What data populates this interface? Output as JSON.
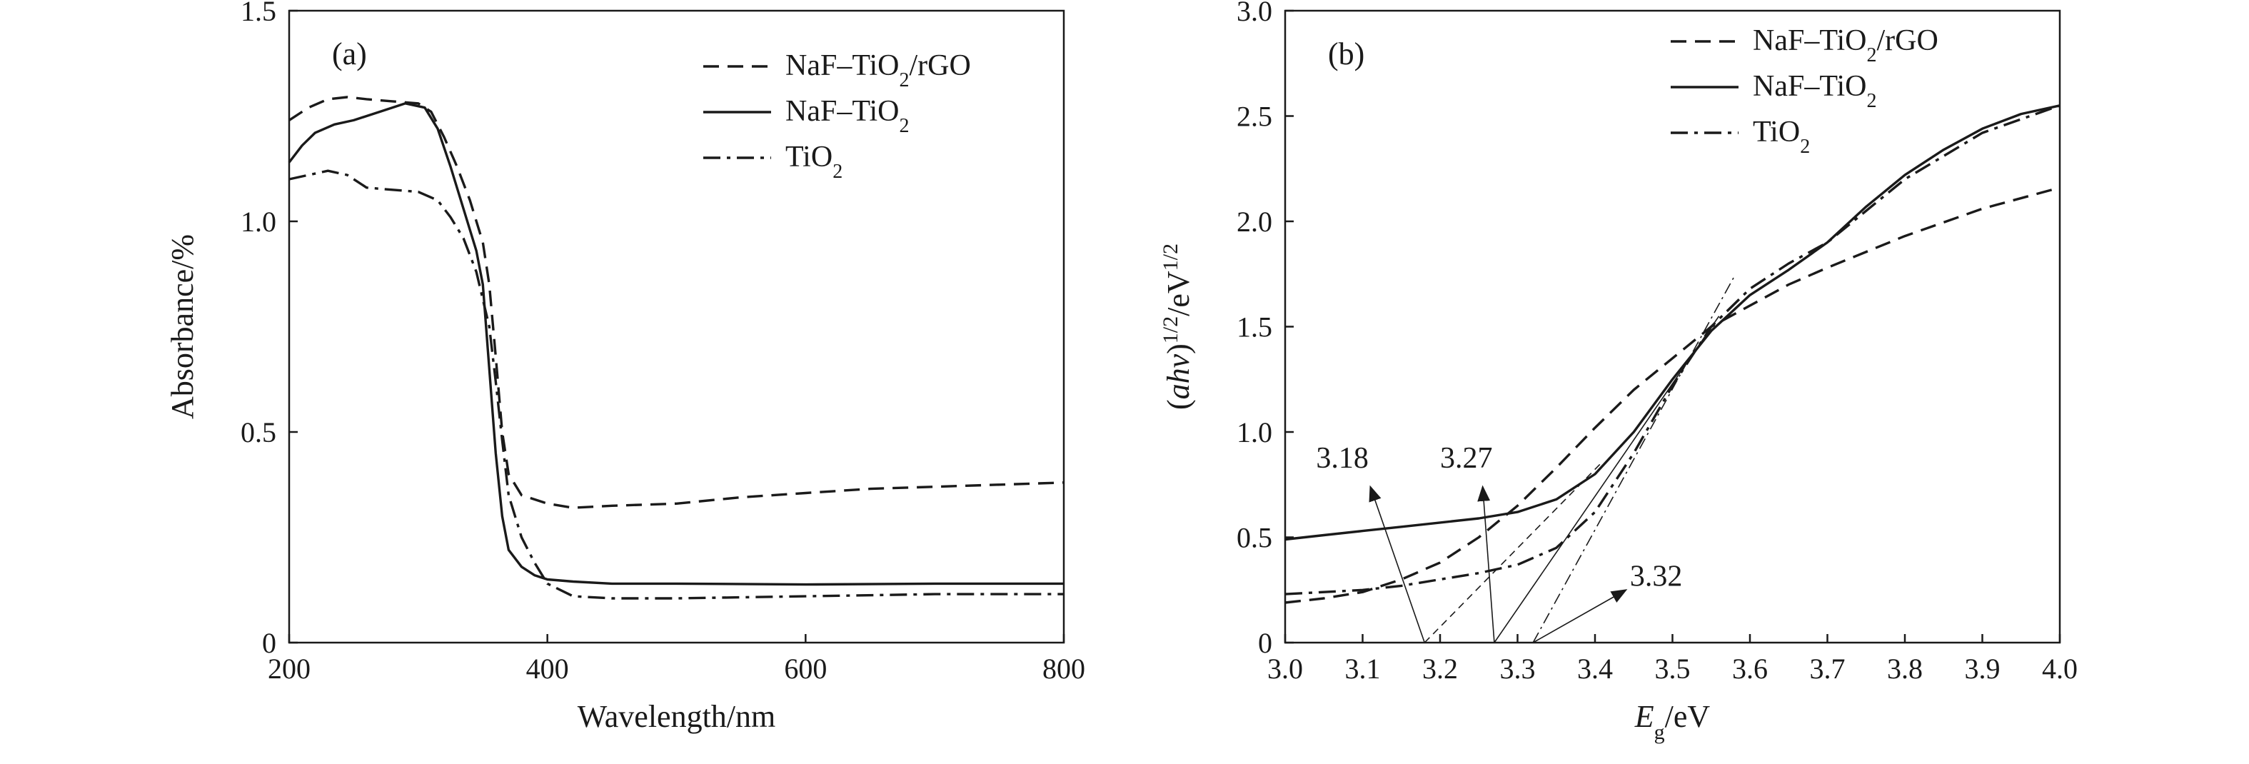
{
  "chart_data": [
    {
      "panel": "(a)",
      "type": "line",
      "xlabel": "Wavelength/nm",
      "ylabel": "Absorbance/%",
      "xlim": [
        200,
        800
      ],
      "ylim": [
        0,
        1.5
      ],
      "xticks": [
        200,
        400,
        600,
        800
      ],
      "yticks": [
        0,
        0.5,
        1.0,
        1.5
      ],
      "ytick_labels": [
        "0",
        "0.5",
        "1.0",
        "1.5"
      ],
      "grid": false,
      "legend_position": "top-right",
      "series": [
        {
          "name": "NaF–TiO2/rGO",
          "legend_label": {
            "pre": "NaF–TiO",
            "sub": "2",
            "post": "/rGO"
          },
          "style": "dashed",
          "x": [
            200,
            215,
            230,
            245,
            260,
            280,
            300,
            310,
            320,
            330,
            340,
            350,
            355,
            360,
            365,
            370,
            380,
            400,
            420,
            450,
            500,
            550,
            600,
            650,
            700,
            750,
            800
          ],
          "y": [
            1.24,
            1.27,
            1.29,
            1.295,
            1.29,
            1.285,
            1.28,
            1.26,
            1.2,
            1.13,
            1.05,
            0.95,
            0.85,
            0.68,
            0.5,
            0.4,
            0.35,
            0.33,
            0.32,
            0.325,
            0.33,
            0.345,
            0.355,
            0.365,
            0.37,
            0.375,
            0.38
          ]
        },
        {
          "name": "NaF–TiO2",
          "legend_label": {
            "pre": "NaF–TiO",
            "sub": "2",
            "post": ""
          },
          "style": "solid",
          "x": [
            200,
            210,
            220,
            235,
            250,
            270,
            290,
            305,
            315,
            325,
            335,
            345,
            350,
            355,
            360,
            365,
            370,
            380,
            390,
            400,
            420,
            450,
            500,
            600,
            700,
            800
          ],
          "y": [
            1.14,
            1.18,
            1.21,
            1.23,
            1.24,
            1.26,
            1.28,
            1.27,
            1.22,
            1.13,
            1.03,
            0.93,
            0.85,
            0.65,
            0.45,
            0.3,
            0.22,
            0.18,
            0.16,
            0.15,
            0.145,
            0.14,
            0.14,
            0.138,
            0.14,
            0.14
          ]
        },
        {
          "name": "TiO2",
          "legend_label": {
            "pre": "TiO",
            "sub": "2",
            "post": ""
          },
          "style": "dashdot",
          "x": [
            200,
            215,
            230,
            245,
            260,
            280,
            300,
            315,
            325,
            335,
            345,
            355,
            360,
            365,
            370,
            380,
            390,
            400,
            420,
            450,
            500,
            600,
            700,
            800
          ],
          "y": [
            1.1,
            1.11,
            1.12,
            1.11,
            1.08,
            1.075,
            1.07,
            1.05,
            1.01,
            0.96,
            0.88,
            0.75,
            0.62,
            0.48,
            0.35,
            0.25,
            0.19,
            0.14,
            0.11,
            0.105,
            0.105,
            0.11,
            0.115,
            0.115
          ]
        }
      ]
    },
    {
      "panel": "(b)",
      "type": "line",
      "xlabel": {
        "pre": "E",
        "sub": "g",
        "post": "/eV"
      },
      "ylabel": {
        "pre": "(",
        "italic": "ahv",
        "post": ")",
        "sup1": "1/2",
        "mid": "/eV",
        "sup2": "1/2"
      },
      "xlim": [
        3.0,
        4.0
      ],
      "ylim": [
        0,
        3.0
      ],
      "xticks": [
        3.0,
        3.1,
        3.2,
        3.3,
        3.4,
        3.5,
        3.6,
        3.7,
        3.8,
        3.9,
        4.0
      ],
      "xtick_labels": [
        "3.0",
        "3.1",
        "3.2",
        "3.3",
        "3.4",
        "3.5",
        "3.6",
        "3.7",
        "3.8",
        "3.9",
        "4.0"
      ],
      "yticks": [
        0,
        0.5,
        1.0,
        1.5,
        2.0,
        2.5,
        3.0
      ],
      "ytick_labels": [
        "0",
        "0.5",
        "1.0",
        "1.5",
        "2.0",
        "2.5",
        "3.0"
      ],
      "grid": false,
      "legend_position": "top-center",
      "series": [
        {
          "name": "NaF–TiO2/rGO",
          "legend_label": {
            "pre": "NaF–TiO",
            "sub": "2",
            "post": "/rGO"
          },
          "style": "dashed",
          "x": [
            3.0,
            3.05,
            3.1,
            3.15,
            3.2,
            3.25,
            3.3,
            3.35,
            3.4,
            3.45,
            3.5,
            3.55,
            3.6,
            3.65,
            3.7,
            3.8,
            3.9,
            4.0
          ],
          "y": [
            0.19,
            0.21,
            0.24,
            0.3,
            0.38,
            0.5,
            0.65,
            0.83,
            1.02,
            1.2,
            1.35,
            1.5,
            1.6,
            1.7,
            1.78,
            1.93,
            2.06,
            2.16
          ]
        },
        {
          "name": "NaF–TiO2",
          "legend_label": {
            "pre": "NaF–TiO",
            "sub": "2",
            "post": ""
          },
          "style": "solid",
          "x": [
            3.0,
            3.05,
            3.1,
            3.15,
            3.2,
            3.25,
            3.3,
            3.35,
            3.4,
            3.45,
            3.5,
            3.55,
            3.6,
            3.65,
            3.7,
            3.75,
            3.8,
            3.85,
            3.9,
            3.95,
            4.0
          ],
          "y": [
            0.49,
            0.51,
            0.53,
            0.55,
            0.57,
            0.59,
            0.62,
            0.68,
            0.8,
            1.0,
            1.25,
            1.48,
            1.65,
            1.77,
            1.9,
            2.07,
            2.22,
            2.34,
            2.44,
            2.51,
            2.55
          ]
        },
        {
          "name": "TiO2",
          "legend_label": {
            "pre": "TiO",
            "sub": "2",
            "post": ""
          },
          "style": "dashdot",
          "x": [
            3.0,
            3.05,
            3.1,
            3.15,
            3.2,
            3.25,
            3.3,
            3.35,
            3.4,
            3.45,
            3.5,
            3.55,
            3.6,
            3.65,
            3.7,
            3.8,
            3.9,
            4.0
          ],
          "y": [
            0.23,
            0.24,
            0.25,
            0.27,
            0.3,
            0.33,
            0.37,
            0.45,
            0.62,
            0.9,
            1.22,
            1.5,
            1.68,
            1.8,
            1.9,
            2.2,
            2.42,
            2.55
          ]
        }
      ],
      "tangent_lines": [
        {
          "style": "dashed-fine",
          "from": [
            3.18,
            0
          ],
          "to": [
            3.41,
            0.86
          ]
        },
        {
          "style": "solid-fine",
          "from": [
            3.27,
            0
          ],
          "to": [
            3.56,
            1.55
          ]
        },
        {
          "style": "dashdot-fine",
          "from": [
            3.32,
            0
          ],
          "to": [
            3.58,
            1.74
          ]
        }
      ],
      "annotations": [
        {
          "text": "3.18",
          "label_at": [
            3.04,
            0.83
          ],
          "arrow_from": [
            3.11,
            0.74
          ],
          "arrow_to": [
            3.18,
            0
          ]
        },
        {
          "text": "3.27",
          "label_at": [
            3.2,
            0.83
          ],
          "arrow_from": [
            3.255,
            0.74
          ],
          "arrow_to": [
            3.27,
            0
          ]
        },
        {
          "text": "3.32",
          "label_at": [
            3.445,
            0.27
          ],
          "arrow_from": [
            3.44,
            0.25
          ],
          "arrow_to": [
            3.32,
            0
          ]
        }
      ]
    }
  ]
}
